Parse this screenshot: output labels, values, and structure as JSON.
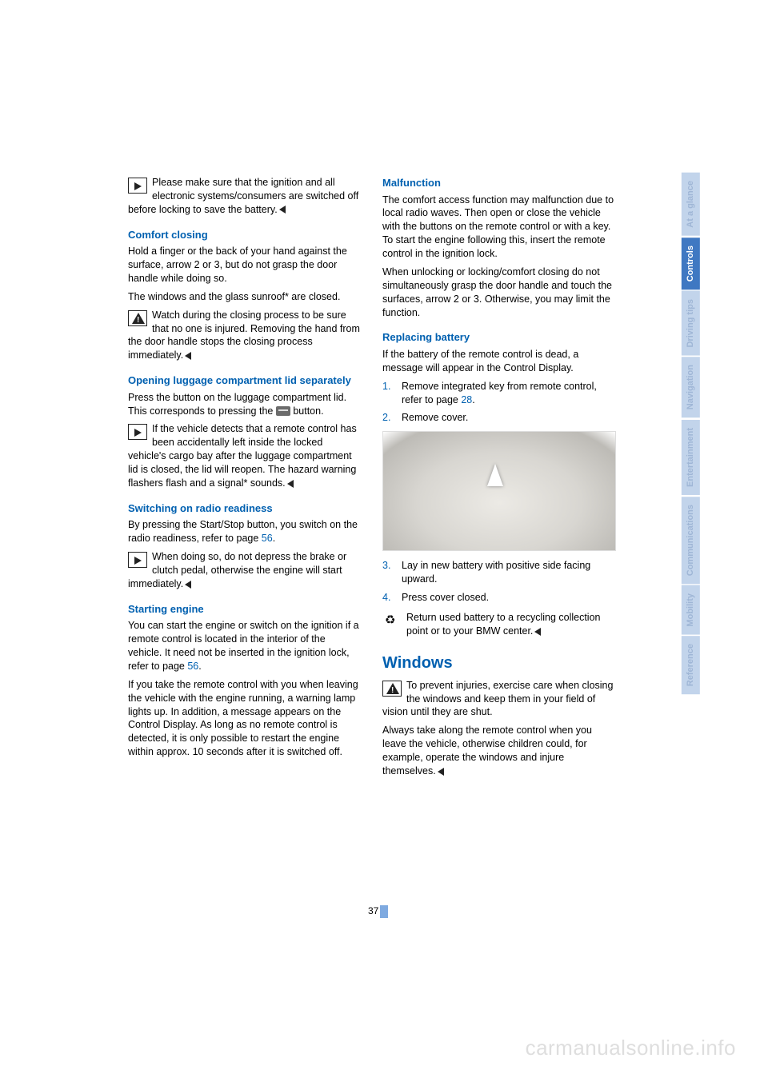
{
  "col1": {
    "notice1": "Please make sure that the ignition and all electronic systems/consumers are switched off before locking to save the battery.",
    "h_comfort": "Comfort closing",
    "p_comfort1": "Hold a finger or the back of your hand against the surface, arrow 2 or 3, but do not grasp the door handle while doing so.",
    "p_comfort2": "The windows and the glass sunroof* are closed.",
    "notice2": "Watch during the closing process to be sure that no one is injured. Removing the hand from the door handle stops the closing process immediately.",
    "h_luggage": "Opening luggage compartment lid separately",
    "p_luggage1a": "Press the button on the luggage compartment lid. This corresponds to pressing the ",
    "p_luggage1b": " button.",
    "notice3": "If the vehicle detects that a remote control has been accidentally left inside the locked vehicle's cargo bay after the luggage compartment lid is closed, the lid will reopen. The hazard warning flashers flash and a signal* sounds.",
    "h_radio": "Switching on radio readiness",
    "p_radio1a": "By pressing the Start/Stop button, you switch on the radio readiness, refer to page ",
    "link56a": "56",
    "p_radio1b": ".",
    "notice4": "When doing so, do not depress the brake or clutch pedal, otherwise the engine will start immediately.",
    "h_start": "Starting engine",
    "p_start1a": "You can start the engine or switch on the ignition if a remote control is located in the interior of the vehicle. It need not be inserted in the ignition lock, refer to page ",
    "link56b": "56",
    "p_start1b": ".",
    "p_start2": "If you take the remote control with you when leaving the vehicle with the engine running, a warning lamp lights up. In addition, a message appears on the Control Display. As long as no remote control is detected, it is only possible to restart the engine within approx. 10 seconds after it is switched off."
  },
  "col2": {
    "h_malf": "Malfunction",
    "p_malf1": "The comfort access function may malfunction due to local radio waves. Then open or close the vehicle with the buttons on the remote control or with a key. To start the engine following this, insert the remote control in the ignition lock.",
    "p_malf2": "When unlocking or locking/comfort closing do not simultaneously grasp the door handle and touch the surfaces, arrow 2 or 3. Otherwise, you may limit the function.",
    "h_batt": "Replacing battery",
    "p_batt1": "If the battery of the remote control is dead, a message will appear in the Control Display.",
    "step1a": "Remove integrated key from remote control, refer to page ",
    "link28": "28",
    "step1b": ".",
    "step2": "Remove cover.",
    "step3": "Lay in new battery with positive side facing upward.",
    "step4": "Press cover closed.",
    "notice5": "Return used battery to a recycling collection point or to your BMW center.",
    "h_windows": "Windows",
    "notice6": "To prevent injuries, exercise care when closing the windows and keep them in your field of vision until they are shut.",
    "p_win2": "Always take along the remote control when you leave the vehicle, otherwise children could, for example, operate the windows and injure themselves."
  },
  "tabs": [
    {
      "label": "At a glance",
      "active": false
    },
    {
      "label": "Controls",
      "active": true
    },
    {
      "label": "Driving tips",
      "active": false
    },
    {
      "label": "Navigation",
      "active": false
    },
    {
      "label": "Entertainment",
      "active": false
    },
    {
      "label": "Communications",
      "active": false
    },
    {
      "label": "Mobility",
      "active": false
    },
    {
      "label": "Reference",
      "active": false
    }
  ],
  "page_number": "37",
  "watermark": "carmanualsonline.info"
}
